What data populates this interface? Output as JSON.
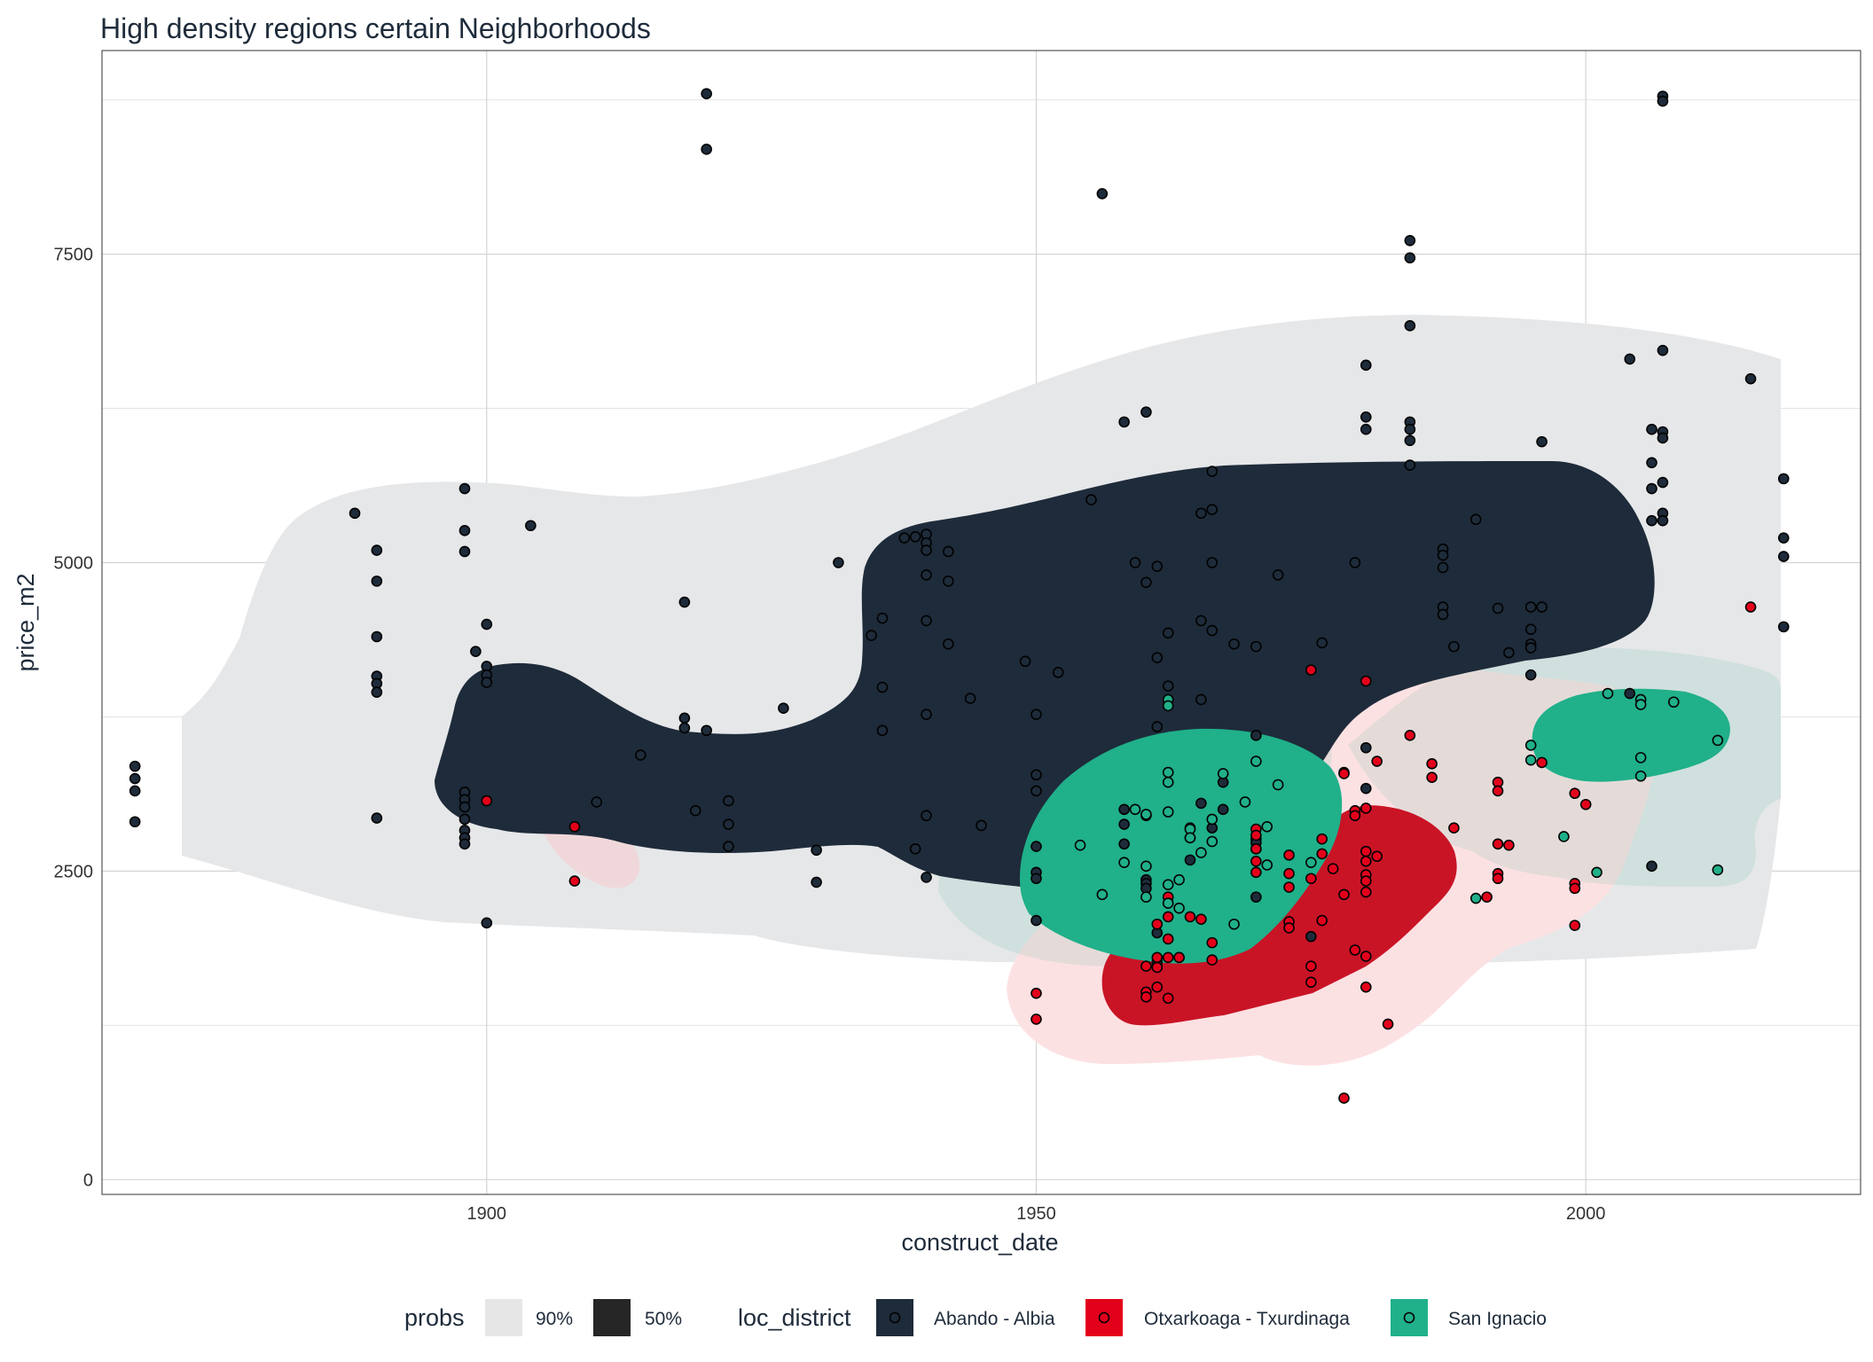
{
  "chart_data": {
    "type": "scatter",
    "title": "High density regions certain Neighborhoods",
    "xlabel": "construct_date",
    "ylabel": "price_m2",
    "xlim": [
      1865,
      2025
    ],
    "ylim": [
      -120,
      9150
    ],
    "x_ticks": [
      1900,
      1950,
      2000
    ],
    "x_tick_labels": [
      "1900",
      "1950",
      "2000"
    ],
    "y_ticks": [
      0,
      2500,
      5000,
      7500
    ],
    "y_tick_labels": [
      "0",
      "2500",
      "5000",
      "7500"
    ],
    "grid": true,
    "legend_position": "bottom",
    "legend": {
      "probs_title": "probs",
      "probs_items": [
        {
          "label": "90%",
          "color": "#e6e6e6"
        },
        {
          "label": "50%",
          "color": "#262626"
        }
      ],
      "district_title": "loc_district",
      "district_items": [
        {
          "label": "Abando - Albia",
          "color": "#1e2b3a"
        },
        {
          "label": "Otxarkoaga - Txurdinaga",
          "color": "#e3001b"
        },
        {
          "label": "San Ignacio",
          "color": "#20b08a"
        }
      ]
    },
    "series": [
      {
        "name": "Abando - Albia",
        "color": "#1e2b3a",
        "points": [
          [
            1868,
            3350
          ],
          [
            1868,
            3250
          ],
          [
            1868,
            3150
          ],
          [
            1868,
            2900
          ],
          [
            1888,
            5400
          ],
          [
            1890,
            5100
          ],
          [
            1890,
            4850
          ],
          [
            1890,
            4400
          ],
          [
            1890,
            4080
          ],
          [
            1890,
            4020
          ],
          [
            1890,
            3950
          ],
          [
            1890,
            2930
          ],
          [
            1898,
            5600
          ],
          [
            1898,
            5260
          ],
          [
            1898,
            5090
          ],
          [
            1898,
            3140
          ],
          [
            1898,
            3080
          ],
          [
            1898,
            3020
          ],
          [
            1898,
            2920
          ],
          [
            1898,
            2830
          ],
          [
            1898,
            2770
          ],
          [
            1898,
            2720
          ],
          [
            1899,
            4280
          ],
          [
            1900,
            4500
          ],
          [
            1900,
            4160
          ],
          [
            1900,
            4090
          ],
          [
            1900,
            4030
          ],
          [
            1900,
            2080
          ],
          [
            1904,
            5300
          ],
          [
            1910,
            3060
          ],
          [
            1914,
            3440
          ],
          [
            1918,
            4680
          ],
          [
            1918,
            3740
          ],
          [
            1918,
            3660
          ],
          [
            1919,
            2990
          ],
          [
            1920,
            8800
          ],
          [
            1920,
            8350
          ],
          [
            1920,
            3640
          ],
          [
            1922,
            3070
          ],
          [
            1922,
            2880
          ],
          [
            1922,
            2700
          ],
          [
            1927,
            3820
          ],
          [
            1930,
            2670
          ],
          [
            1930,
            2410
          ],
          [
            1932,
            5000
          ],
          [
            1935,
            4410
          ],
          [
            1936,
            4550
          ],
          [
            1936,
            3990
          ],
          [
            1936,
            3640
          ],
          [
            1938,
            5200
          ],
          [
            1939,
            5210
          ],
          [
            1939,
            2680
          ],
          [
            1940,
            5230
          ],
          [
            1940,
            5160
          ],
          [
            1940,
            5100
          ],
          [
            1940,
            4900
          ],
          [
            1940,
            4530
          ],
          [
            1940,
            3770
          ],
          [
            1940,
            2950
          ],
          [
            1940,
            2450
          ],
          [
            1942,
            5090
          ],
          [
            1942,
            4850
          ],
          [
            1942,
            4340
          ],
          [
            1944,
            3900
          ],
          [
            1945,
            2870
          ],
          [
            1949,
            4200
          ],
          [
            1950,
            3770
          ],
          [
            1950,
            3280
          ],
          [
            1950,
            3150
          ],
          [
            1950,
            2700
          ],
          [
            1950,
            2100
          ],
          [
            1950,
            2490
          ],
          [
            1950,
            2440
          ],
          [
            1952,
            4110
          ],
          [
            1955,
            5510
          ],
          [
            1956,
            7990
          ],
          [
            1958,
            6140
          ],
          [
            1958,
            3000
          ],
          [
            1958,
            2880
          ],
          [
            1958,
            2720
          ],
          [
            1959,
            5000
          ],
          [
            1960,
            6220
          ],
          [
            1960,
            4840
          ],
          [
            1960,
            2950
          ],
          [
            1960,
            2430
          ],
          [
            1960,
            2400
          ],
          [
            1960,
            2360
          ],
          [
            1961,
            4970
          ],
          [
            1961,
            4230
          ],
          [
            1961,
            3670
          ],
          [
            1961,
            2000
          ],
          [
            1961,
            1760
          ],
          [
            1962,
            4430
          ],
          [
            1962,
            4000
          ],
          [
            1963,
            1800
          ],
          [
            1964,
            2770
          ],
          [
            1964,
            2850
          ],
          [
            1964,
            2590
          ],
          [
            1965,
            5400
          ],
          [
            1965,
            4530
          ],
          [
            1965,
            3890
          ],
          [
            1965,
            3050
          ],
          [
            1966,
            5740
          ],
          [
            1966,
            5430
          ],
          [
            1966,
            5000
          ],
          [
            1966,
            4450
          ],
          [
            1966,
            2850
          ],
          [
            1967,
            3220
          ],
          [
            1967,
            3000
          ],
          [
            1968,
            4340
          ],
          [
            1970,
            4320
          ],
          [
            1970,
            3600
          ],
          [
            1970,
            2760
          ],
          [
            1970,
            2730
          ],
          [
            1970,
            2680
          ],
          [
            1970,
            2290
          ],
          [
            1972,
            4900
          ],
          [
            1975,
            1970
          ],
          [
            1976,
            4350
          ],
          [
            1978,
            3300
          ],
          [
            1979,
            5000
          ],
          [
            1980,
            6600
          ],
          [
            1980,
            6180
          ],
          [
            1980,
            6080
          ],
          [
            1980,
            3500
          ],
          [
            1980,
            3170
          ],
          [
            1984,
            7610
          ],
          [
            1984,
            7470
          ],
          [
            1984,
            6920
          ],
          [
            1984,
            6140
          ],
          [
            1984,
            6080
          ],
          [
            1984,
            5990
          ],
          [
            1984,
            5790
          ],
          [
            1987,
            5110
          ],
          [
            1987,
            5060
          ],
          [
            1987,
            4960
          ],
          [
            1987,
            4640
          ],
          [
            1987,
            4580
          ],
          [
            1988,
            4320
          ],
          [
            1990,
            5350
          ],
          [
            1992,
            4630
          ],
          [
            1993,
            4270
          ],
          [
            1995,
            4640
          ],
          [
            1995,
            4460
          ],
          [
            1995,
            4340
          ],
          [
            1995,
            4310
          ],
          [
            1995,
            4090
          ],
          [
            1996,
            5980
          ],
          [
            1996,
            4640
          ],
          [
            2004,
            6650
          ],
          [
            2004,
            3940
          ],
          [
            2006,
            6080
          ],
          [
            2006,
            5810
          ],
          [
            2006,
            5340
          ],
          [
            2006,
            5600
          ],
          [
            2006,
            2540
          ],
          [
            2007,
            8780
          ],
          [
            2007,
            8740
          ],
          [
            2007,
            6720
          ],
          [
            2007,
            6060
          ],
          [
            2007,
            6010
          ],
          [
            2007,
            5650
          ],
          [
            2007,
            5400
          ],
          [
            2007,
            5340
          ],
          [
            2015,
            6490
          ],
          [
            2018,
            5680
          ],
          [
            2018,
            5200
          ],
          [
            2018,
            5050
          ],
          [
            2018,
            4480
          ]
        ]
      },
      {
        "name": "Otxarkoaga - Txurdinaga",
        "color": "#e3001b",
        "points": [
          [
            1900,
            3070
          ],
          [
            1908,
            2860
          ],
          [
            1908,
            2420
          ],
          [
            1950,
            1510
          ],
          [
            1950,
            1300
          ],
          [
            1960,
            1730
          ],
          [
            1960,
            1520
          ],
          [
            1960,
            1480
          ],
          [
            1961,
            2070
          ],
          [
            1961,
            1800
          ],
          [
            1961,
            1720
          ],
          [
            1961,
            1560
          ],
          [
            1962,
            2290
          ],
          [
            1962,
            2130
          ],
          [
            1962,
            1950
          ],
          [
            1962,
            1800
          ],
          [
            1962,
            1470
          ],
          [
            1963,
            1800
          ],
          [
            1964,
            2130
          ],
          [
            1965,
            2110
          ],
          [
            1966,
            1920
          ],
          [
            1966,
            1780
          ],
          [
            1970,
            2840
          ],
          [
            1970,
            2790
          ],
          [
            1970,
            2680
          ],
          [
            1970,
            2580
          ],
          [
            1970,
            2490
          ],
          [
            1973,
            2630
          ],
          [
            1973,
            2480
          ],
          [
            1973,
            2370
          ],
          [
            1973,
            2090
          ],
          [
            1973,
            2040
          ],
          [
            1975,
            1730
          ],
          [
            1975,
            1600
          ],
          [
            1975,
            2440
          ],
          [
            1975,
            4130
          ],
          [
            1976,
            2760
          ],
          [
            1976,
            2640
          ],
          [
            1976,
            2100
          ],
          [
            1977,
            2520
          ],
          [
            1978,
            2310
          ],
          [
            1978,
            3290
          ],
          [
            1979,
            2990
          ],
          [
            1979,
            2950
          ],
          [
            1979,
            1860
          ],
          [
            1980,
            4040
          ],
          [
            1980,
            3010
          ],
          [
            1980,
            2660
          ],
          [
            1980,
            2580
          ],
          [
            1980,
            2470
          ],
          [
            1980,
            2420
          ],
          [
            1980,
            2330
          ],
          [
            1980,
            1810
          ],
          [
            1980,
            1560
          ],
          [
            1981,
            2620
          ],
          [
            1981,
            3390
          ],
          [
            1982,
            1260
          ],
          [
            1978,
            660
          ],
          [
            1984,
            3600
          ],
          [
            1986,
            3370
          ],
          [
            1986,
            3260
          ],
          [
            1988,
            2850
          ],
          [
            1991,
            2290
          ],
          [
            1992,
            3220
          ],
          [
            1992,
            3150
          ],
          [
            1992,
            2720
          ],
          [
            1992,
            2480
          ],
          [
            1992,
            2440
          ],
          [
            1993,
            2710
          ],
          [
            1996,
            3380
          ],
          [
            1999,
            3130
          ],
          [
            1999,
            2400
          ],
          [
            1999,
            2360
          ],
          [
            1999,
            2060
          ],
          [
            2000,
            3040
          ],
          [
            2015,
            4640
          ]
        ]
      },
      {
        "name": "San Ignacio",
        "color": "#20b08a",
        "points": [
          [
            1954,
            2710
          ],
          [
            1956,
            2310
          ],
          [
            1958,
            2570
          ],
          [
            1959,
            3000
          ],
          [
            1960,
            2960
          ],
          [
            1960,
            2540
          ],
          [
            1960,
            2290
          ],
          [
            1962,
            3890
          ],
          [
            1962,
            3840
          ],
          [
            1962,
            3300
          ],
          [
            1962,
            3220
          ],
          [
            1962,
            2980
          ],
          [
            1962,
            2390
          ],
          [
            1962,
            2240
          ],
          [
            1963,
            2430
          ],
          [
            1963,
            2200
          ],
          [
            1964,
            2840
          ],
          [
            1964,
            2770
          ],
          [
            1965,
            2650
          ],
          [
            1966,
            2920
          ],
          [
            1966,
            2740
          ],
          [
            1967,
            3290
          ],
          [
            1968,
            2070
          ],
          [
            1969,
            3060
          ],
          [
            1970,
            3390
          ],
          [
            1971,
            2860
          ],
          [
            1971,
            2550
          ],
          [
            1972,
            3200
          ],
          [
            1975,
            2570
          ],
          [
            1990,
            2280
          ],
          [
            1995,
            3520
          ],
          [
            1995,
            3400
          ],
          [
            1998,
            2780
          ],
          [
            2001,
            2490
          ],
          [
            2002,
            3940
          ],
          [
            2005,
            3890
          ],
          [
            2005,
            3850
          ],
          [
            2005,
            3420
          ],
          [
            2005,
            3270
          ],
          [
            2008,
            3870
          ],
          [
            2012,
            3560
          ],
          [
            2012,
            2510
          ]
        ]
      }
    ]
  }
}
